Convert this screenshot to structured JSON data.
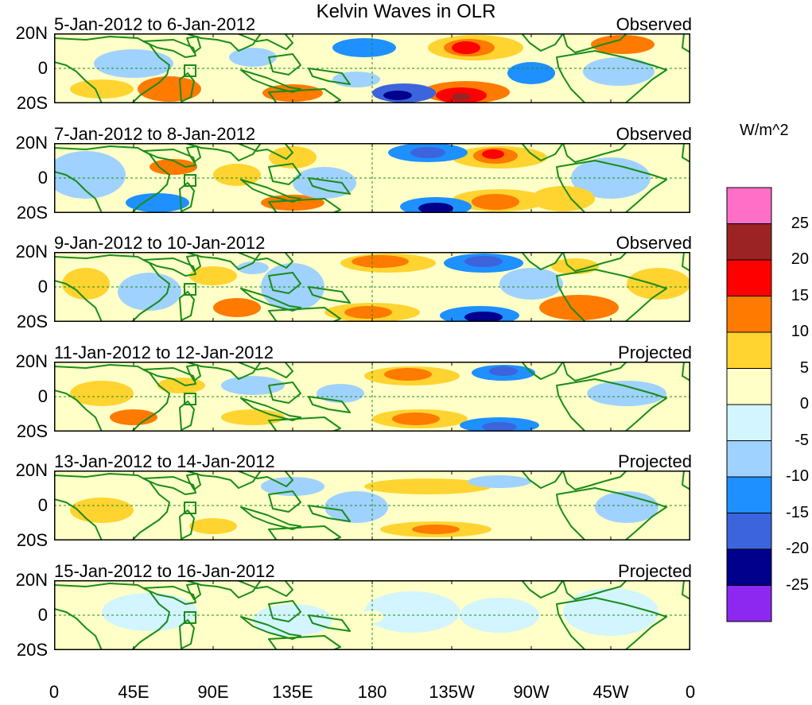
{
  "title": "Kelvin Waves in OLR",
  "lat_labels": [
    "20N",
    "0",
    "20S"
  ],
  "x_ticks": [
    "0",
    "45E",
    "90E",
    "135E",
    "180",
    "135W",
    "90W",
    "45W",
    "0"
  ],
  "units": "W/m^2",
  "colorbar": {
    "labels": [
      "25",
      "20",
      "15",
      "10",
      "5",
      "0",
      "-5",
      "-10",
      "-15",
      "-20",
      "-25"
    ],
    "colors": [
      "#ff6ec7",
      "#9b2323",
      "#ff0000",
      "#ff7a00",
      "#ffd430",
      "#ffffc8",
      "#d2f5ff",
      "#a0d2ff",
      "#1e90ff",
      "#3c64dc",
      "#00008c",
      "#8c28f0"
    ]
  },
  "colors": {
    "coast": "#1a8c1a",
    "grid": "#1a8c1a",
    "frame": "#000000"
  },
  "panels": [
    {
      "date": "5-Jan-2012 to 6-Jan-2012",
      "status": "Observed"
    },
    {
      "date": "7-Jan-2012 to 8-Jan-2012",
      "status": "Observed"
    },
    {
      "date": "9-Jan-2012 to 10-Jan-2012",
      "status": "Observed"
    },
    {
      "date": "11-Jan-2012 to 12-Jan-2012",
      "status": "Projected"
    },
    {
      "date": "13-Jan-2012 to 14-Jan-2012",
      "status": "Projected"
    },
    {
      "date": "15-Jan-2012 to 16-Jan-2012",
      "status": "Projected"
    }
  ]
}
